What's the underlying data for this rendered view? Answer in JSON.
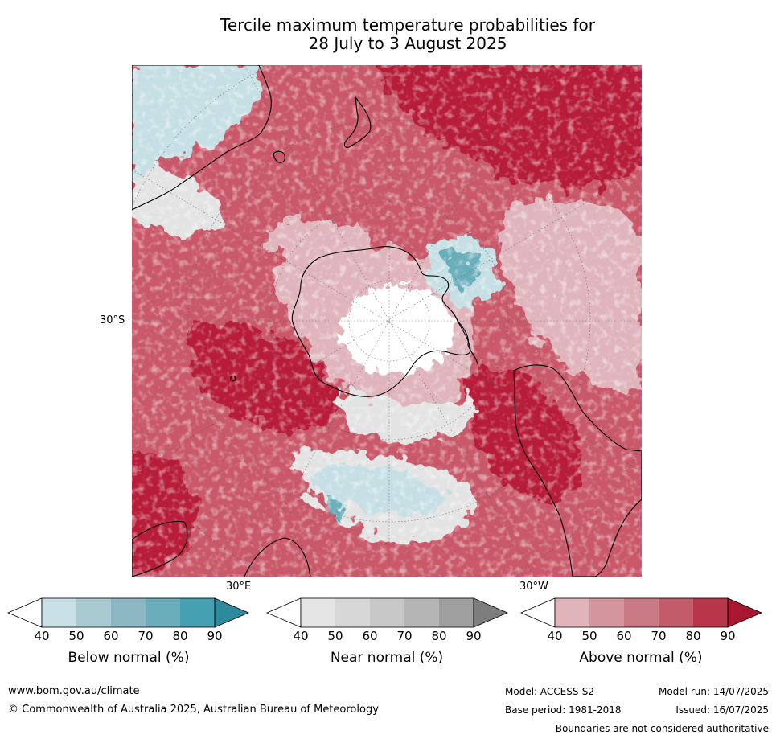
{
  "title": {
    "line1": "Tercile maximum temperature probabilities for",
    "line2": "28 July to 3 August 2025"
  },
  "map": {
    "axis_labels": {
      "lat_30s": "30°S",
      "lon_30e": "30°E",
      "lon_30w": "30°W"
    },
    "colors": {
      "strong_above": "#b71c38",
      "above": "#c9596a",
      "weak_above": "#dfb4bb",
      "near": "#e3e3e3",
      "below": "#c5dfe4",
      "strong_below": "#6aaebb",
      "coast": "#000000"
    }
  },
  "colorbars": [
    {
      "title": "Below normal (%)",
      "ticks": [
        "40",
        "50",
        "60",
        "70",
        "80",
        "90"
      ],
      "colors": [
        "#c8e0e6",
        "#a9cad1",
        "#8db7c3",
        "#6aaebb",
        "#45a0b1",
        "#2b8a9c"
      ]
    },
    {
      "title": "Near normal (%)",
      "ticks": [
        "40",
        "50",
        "60",
        "70",
        "80",
        "90"
      ],
      "colors": [
        "#e5e5e5",
        "#d7d7d7",
        "#c8c8c8",
        "#b5b5b5",
        "#9f9f9f",
        "#7d7d7d"
      ]
    },
    {
      "title": "Above normal (%)",
      "ticks": [
        "40",
        "50",
        "60",
        "70",
        "80",
        "90"
      ],
      "colors": [
        "#dfb4bb",
        "#d4959e",
        "#c97a85",
        "#c25c6b",
        "#b93549",
        "#a8162f"
      ]
    }
  ],
  "footer": {
    "website": "www.bom.gov.au/climate",
    "copyright": "© Commonwealth of Australia 2025, Australian Bureau of Meteorology",
    "model": "Model: ACCESS-S2",
    "model_run": "Model run: 14/07/2025",
    "base_period": "Base period: 1981-2018",
    "issued": "Issued: 16/07/2025",
    "disclaimer": "Boundaries are not considered authoritative"
  }
}
